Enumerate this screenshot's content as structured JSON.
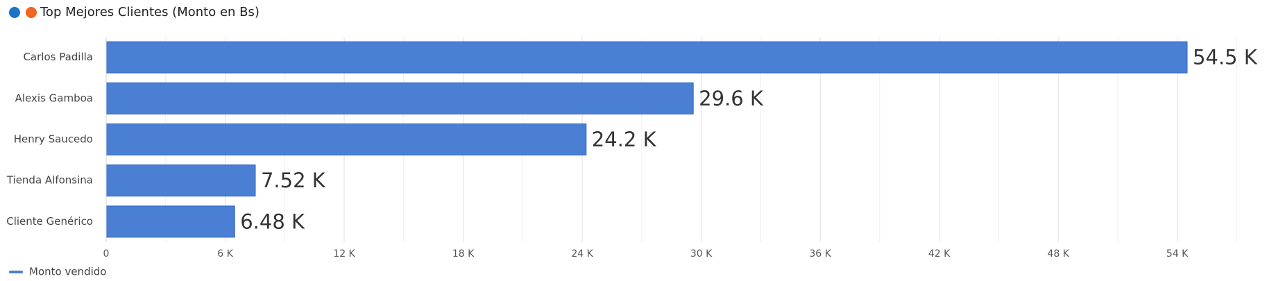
{
  "chart_data": {
    "type": "bar",
    "orientation": "horizontal",
    "title": "Top Mejores Clientes (Monto en Bs)",
    "title_dot_colors": [
      "#1a73c7",
      "#f26522"
    ],
    "categories": [
      "Carlos Padilla",
      "Alexis Gamboa",
      "Henry Saucedo",
      "Tienda Alfonsina",
      "Cliente Genérico"
    ],
    "series": [
      {
        "name": "Monto vendido",
        "color": "#4a7fd4",
        "values": [
          54500,
          29600,
          24200,
          7520,
          6480
        ],
        "value_labels": [
          "54.5 K",
          "29.6 K",
          "24.2 K",
          "7.52 K",
          "6.48 K"
        ]
      }
    ],
    "xlim": [
      0,
      58000
    ],
    "xticks": [
      0,
      {
        "value": 6000,
        "label": "6 K"
      },
      {
        "value": 12000,
        "label": "12 K"
      },
      {
        "value": 18000,
        "label": "18 K"
      },
      {
        "value": 24000,
        "label": "24 K"
      },
      {
        "value": 30000,
        "label": "30 K"
      },
      {
        "value": 36000,
        "label": "36 K"
      },
      {
        "value": 42000,
        "label": "42 K"
      },
      {
        "value": 48000,
        "label": "48 K"
      },
      {
        "value": 54000,
        "label": "54 K"
      }
    ],
    "xminorticks": [
      3000,
      9000,
      15000,
      21000,
      27000,
      33000,
      39000,
      45000,
      51000,
      57000
    ],
    "grid": true,
    "legend": "bottom-left"
  }
}
